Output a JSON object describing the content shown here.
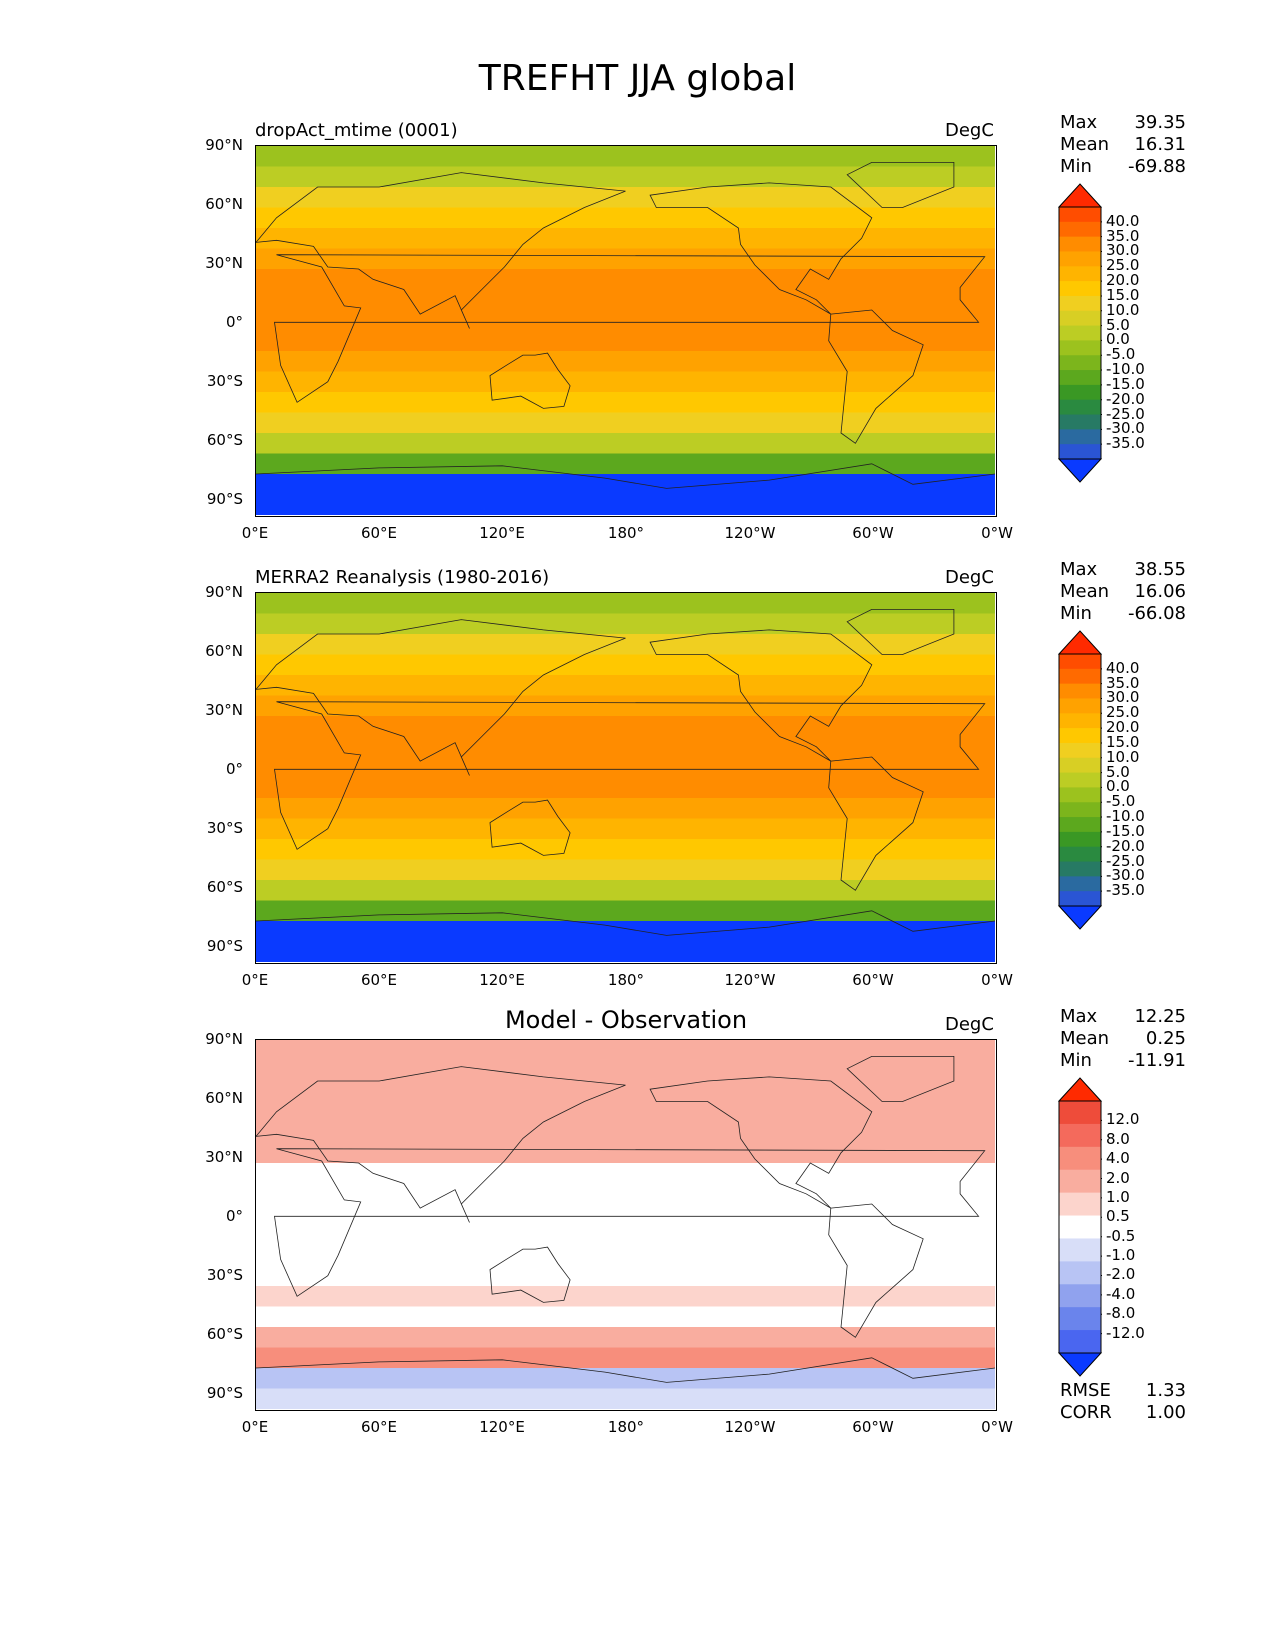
{
  "figure": {
    "title": "TREFHT JJA global"
  },
  "axes": {
    "lat_labels": [
      "90°N",
      "60°N",
      "30°N",
      "0°",
      "30°S",
      "60°S",
      "90°S"
    ],
    "lon_labels": [
      "0°E",
      "60°E",
      "120°E",
      "180°",
      "120°W",
      "60°W",
      "0°W"
    ]
  },
  "panels": [
    {
      "title": "dropAct_mtime (0001)",
      "units": "DegC",
      "stats": {
        "max_label": "Max",
        "max": "39.35",
        "mean_label": "Mean",
        "mean": "16.31",
        "min_label": "Min",
        "min": "-69.88"
      },
      "colorbar_labels": [
        "40.0",
        "35.0",
        "30.0",
        "25.0",
        "20.0",
        "15.0",
        "10.0",
        "5.0",
        "0.0",
        "-5.0",
        "-10.0",
        "-15.0",
        "-20.0",
        "-25.0",
        "-30.0",
        "-35.0"
      ]
    },
    {
      "title": "MERRA2 Reanalysis (1980-2016)",
      "units": "DegC",
      "stats": {
        "max_label": "Max",
        "max": "38.55",
        "mean_label": "Mean",
        "mean": "16.06",
        "min_label": "Min",
        "min": "-66.08"
      },
      "colorbar_labels": [
        "40.0",
        "35.0",
        "30.0",
        "25.0",
        "20.0",
        "15.0",
        "10.0",
        "5.0",
        "0.0",
        "-5.0",
        "-10.0",
        "-15.0",
        "-20.0",
        "-25.0",
        "-30.0",
        "-35.0"
      ]
    },
    {
      "title": "Model - Observation",
      "units": "DegC",
      "stats": {
        "max_label": "Max",
        "max": "12.25",
        "mean_label": "Mean",
        "mean": "0.25",
        "min_label": "Min",
        "min": "-11.91"
      },
      "colorbar_labels": [
        "12.0",
        "8.0",
        "4.0",
        "2.0",
        "1.0",
        "0.5",
        "-0.5",
        "-1.0",
        "-2.0",
        "-4.0",
        "-8.0",
        "-12.0"
      ],
      "metrics": {
        "rmse_label": "RMSE",
        "rmse": "1.33",
        "corr_label": "CORR",
        "corr": "1.00"
      }
    }
  ],
  "colors": {
    "temp_scale": [
      "#ff2a00",
      "#ff4d00",
      "#ff6a00",
      "#ff8c00",
      "#ffa200",
      "#ffb400",
      "#ffc800",
      "#f0cf20",
      "#d8cf24",
      "#bccd24",
      "#9cc21e",
      "#7cb51c",
      "#5ca81e",
      "#3a9824",
      "#2a8a40",
      "#277a64",
      "#2a6aa0",
      "#2a55d4",
      "#0a3aff"
    ],
    "diff_scale": [
      "#ff2a00",
      "#ee4c3a",
      "#f46a5c",
      "#f78e7c",
      "#f9ad9f",
      "#fcd4cc",
      "#ffffff",
      "#d8def8",
      "#b8c4f4",
      "#90a2ee",
      "#6a84ec",
      "#4a66f0",
      "#0a3aff"
    ]
  },
  "chart_data": [
    {
      "type": "heatmap",
      "title": "dropAct_mtime (0001)",
      "variable": "TREFHT",
      "units": "DegC",
      "x": [
        "0°E",
        "60°E",
        "120°E",
        "180°",
        "120°W",
        "60°W",
        "0°W"
      ],
      "y": [
        "90°N",
        "60°N",
        "30°N",
        "0°",
        "30°S",
        "60°S",
        "90°S"
      ],
      "zonal_mean_lat": [
        85,
        75,
        65,
        55,
        45,
        35,
        25,
        15,
        5,
        -5,
        -15,
        -25,
        -35,
        -45,
        -55,
        -65,
        -75,
        -85
      ],
      "zonal_mean_values": [
        0,
        2,
        10,
        14,
        18,
        23,
        26,
        27,
        27,
        26,
        24,
        20,
        15,
        9,
        2,
        -8,
        -35,
        -40
      ],
      "clim": [
        -35,
        40
      ]
    },
    {
      "type": "heatmap",
      "title": "MERRA2 Reanalysis (1980-2016)",
      "variable": "TREFHT",
      "units": "DegC",
      "x": [
        "0°E",
        "60°E",
        "120°E",
        "180°",
        "120°W",
        "60°W",
        "0°W"
      ],
      "y": [
        "90°N",
        "60°N",
        "30°N",
        "0°",
        "30°S",
        "60°S",
        "90°S"
      ],
      "zonal_mean_lat": [
        85,
        75,
        65,
        55,
        45,
        35,
        25,
        15,
        5,
        -5,
        -15,
        -25,
        -35,
        -45,
        -55,
        -65,
        -75,
        -85
      ],
      "zonal_mean_values": [
        0,
        2,
        10,
        14,
        18,
        23,
        26,
        27,
        27,
        26,
        24,
        20,
        15,
        9,
        2,
        -8,
        -35,
        -40
      ],
      "clim": [
        -35,
        40
      ]
    },
    {
      "type": "heatmap",
      "title": "Model - Observation",
      "variable": "TREFHT difference",
      "units": "DegC",
      "x": [
        "0°E",
        "60°E",
        "120°E",
        "180°",
        "120°W",
        "60°W",
        "0°W"
      ],
      "y": [
        "90°N",
        "60°N",
        "30°N",
        "0°",
        "30°S",
        "60°S",
        "90°S"
      ],
      "zonal_mean_lat": [
        85,
        75,
        65,
        55,
        45,
        35,
        25,
        15,
        5,
        -5,
        -15,
        -25,
        -35,
        -45,
        -55,
        -65,
        -75,
        -85
      ],
      "zonal_mean_values": [
        1,
        1,
        1.5,
        1,
        1.5,
        1,
        0.3,
        0,
        0,
        0,
        0,
        0.3,
        0.5,
        0,
        1,
        2,
        -2,
        -1
      ],
      "clim": [
        -12,
        12
      ]
    }
  ]
}
